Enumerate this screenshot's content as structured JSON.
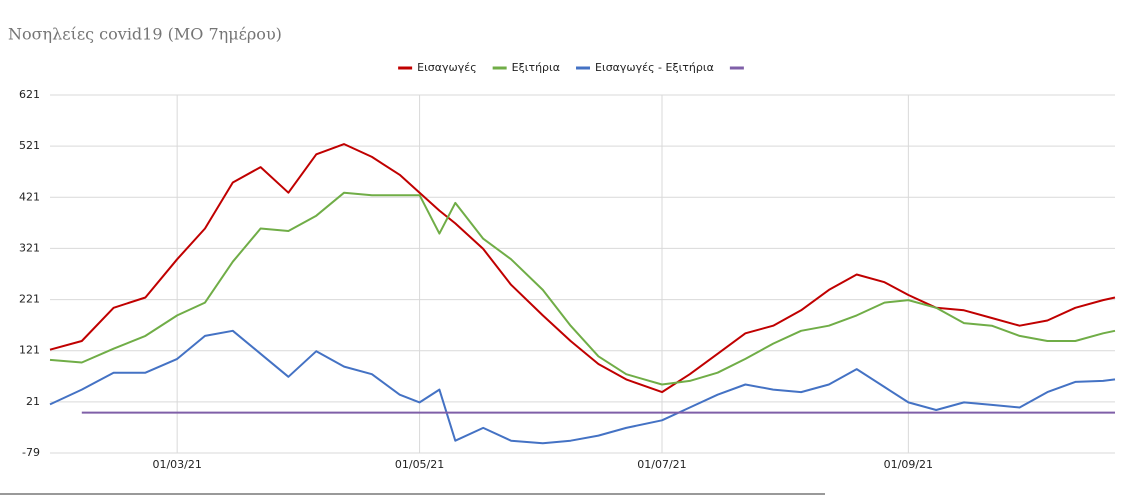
{
  "chart_data": {
    "type": "line",
    "title": "Νοσηλείες covid19 (ΜΟ 7ημέρου)",
    "x": [
      "28/01/21",
      "05/02/21",
      "13/02/21",
      "21/02/21",
      "01/03/21",
      "08/03/21",
      "15/03/21",
      "22/03/21",
      "29/03/21",
      "05/04/21",
      "12/04/21",
      "19/04/21",
      "26/04/21",
      "01/05/21",
      "06/05/21",
      "10/05/21",
      "17/05/21",
      "24/05/21",
      "01/06/21",
      "08/06/21",
      "15/06/21",
      "22/06/21",
      "01/07/21",
      "08/07/21",
      "15/07/21",
      "22/07/21",
      "29/07/21",
      "05/08/21",
      "12/08/21",
      "19/08/21",
      "26/08/21",
      "01/09/21",
      "08/09/21",
      "15/09/21",
      "22/09/21",
      "29/09/21",
      "06/10/21",
      "13/10/21",
      "20/10/21",
      "23/10/21"
    ],
    "series": [
      {
        "name": "Εισαγωγές",
        "color": "#c00000",
        "values": [
          123,
          140,
          205,
          225,
          300,
          360,
          450,
          480,
          430,
          505,
          525,
          500,
          465,
          430,
          395,
          370,
          320,
          250,
          190,
          140,
          95,
          65,
          40,
          75,
          115,
          155,
          170,
          200,
          240,
          270,
          255,
          230,
          205,
          200,
          185,
          170,
          180,
          205,
          220,
          225
        ]
      },
      {
        "name": "Εξιτήρια",
        "color": "#70ad47",
        "values": [
          103,
          98,
          125,
          150,
          190,
          215,
          295,
          360,
          355,
          385,
          430,
          425,
          425,
          425,
          350,
          410,
          340,
          300,
          240,
          170,
          110,
          75,
          55,
          62,
          78,
          105,
          135,
          160,
          170,
          190,
          215,
          220,
          205,
          175,
          170,
          150,
          140,
          140,
          155,
          160
        ]
      },
      {
        "name": "Εισαγωγές - Εξιτήρια",
        "color": "#4472c4",
        "values": [
          16,
          45,
          78,
          78,
          105,
          150,
          160,
          115,
          70,
          120,
          90,
          75,
          35,
          20,
          45,
          -55,
          -30,
          -55,
          -60,
          -55,
          -45,
          -30,
          -15,
          10,
          35,
          55,
          45,
          40,
          55,
          85,
          50,
          20,
          5,
          20,
          15,
          10,
          40,
          60,
          62,
          65
        ]
      },
      {
        "color": "#7f5fa8",
        "values": [
          null,
          0,
          0,
          0,
          0,
          0,
          0,
          0,
          0,
          0,
          0,
          0,
          0,
          0,
          0,
          0,
          0,
          0,
          0,
          0,
          0,
          0,
          0,
          0,
          0,
          0,
          0,
          0,
          0,
          0,
          0,
          0,
          0,
          0,
          0,
          0,
          0,
          0,
          0,
          0
        ]
      }
    ],
    "xlim": [
      "28/01/21",
      "23/10/21"
    ],
    "xticks": [
      "01/03/21",
      "01/05/21",
      "01/07/21",
      "01/09/21"
    ],
    "ylim": [
      -79,
      621
    ],
    "yticks": [
      -79,
      21,
      121,
      221,
      321,
      421,
      521,
      621
    ],
    "grid": true,
    "legend": "top"
  }
}
